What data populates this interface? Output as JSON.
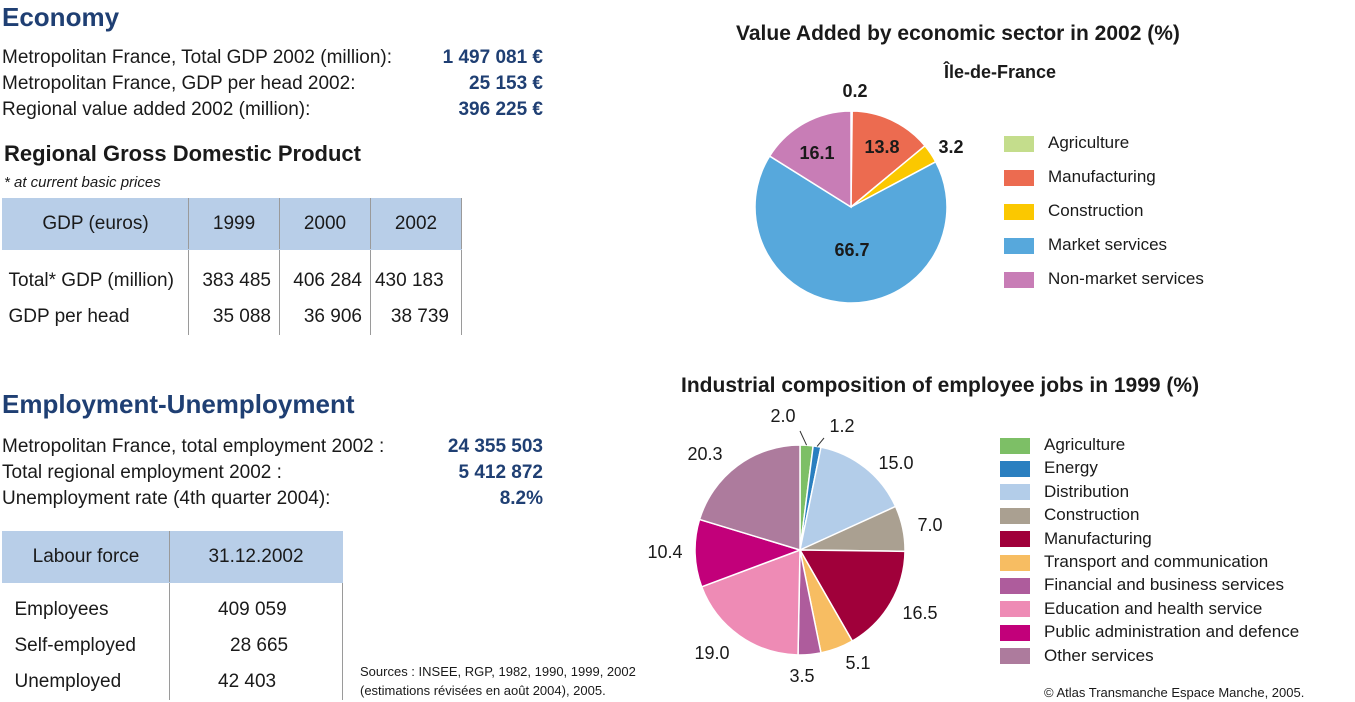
{
  "economy": {
    "title": "Economy",
    "rows": [
      {
        "label": "Metropolitan France, Total GDP 2002 (million):",
        "value": "1 497 081 €"
      },
      {
        "label": "Metropolitan France, GDP per head 2002:",
        "value": "25 153 €"
      },
      {
        "label": "Regional value added 2002 (million):",
        "value": "396 225 €"
      }
    ]
  },
  "gdp": {
    "title": "Regional Gross Domestic Product",
    "note": "* at current basic prices",
    "headers": [
      "GDP (euros)",
      "1999",
      "2000",
      "2002"
    ],
    "rows": [
      {
        "label": "Total* GDP (million)",
        "values": [
          "383 485",
          "406 284",
          "430 183"
        ]
      },
      {
        "label": "GDP per head",
        "values": [
          "35 088",
          "36 906",
          "38 739"
        ]
      }
    ]
  },
  "employment": {
    "title": "Employment-Unemployment",
    "rows": [
      {
        "label": "Metropolitan France, total employment 2002 :",
        "value": "24 355 503"
      },
      {
        "label": "Total regional employment 2002 :",
        "value": "5 412 872"
      },
      {
        "label": "Unemployment rate (4th quarter 2004):",
        "value": "8.2%"
      }
    ]
  },
  "labour": {
    "headers": [
      "Labour force",
      "31.12.2002"
    ],
    "rows": [
      {
        "label": "Employees",
        "value": "409 059"
      },
      {
        "label": "Self-employed",
        "value": "28 665"
      },
      {
        "label": "Unemployed",
        "value": "42 403"
      }
    ]
  },
  "sources": {
    "line1": "Sources : INSEE, RGP, 1982, 1990, 1999, 2002",
    "line2": "(estimations révisées en août 2004), 2005."
  },
  "copyright": "© Atlas Transmanche Espace Manche, 2005.",
  "chart_data": [
    {
      "type": "pie",
      "title": "Value Added by economic sector in 2002 (%)",
      "subtitle": "Île-de-France",
      "categories": [
        "Agriculture",
        "Manufacturing",
        "Construction",
        "Market services",
        "Non-market services"
      ],
      "values": [
        0.2,
        13.8,
        3.2,
        66.7,
        16.1
      ],
      "colors": [
        "#c4dd8c",
        "#ec6b50",
        "#fbc800",
        "#57a8dc",
        "#c87db6"
      ],
      "legend": "right"
    },
    {
      "type": "pie",
      "title": "Industrial composition of employee jobs in 1999 (%)",
      "categories": [
        "Agriculture",
        "Energy",
        "Distribution",
        "Construction",
        "Manufacturing",
        "Transport and communication",
        "Financial and business services",
        "Education and health service",
        "Public administration and defence",
        "Other services"
      ],
      "values": [
        2.0,
        1.2,
        15.0,
        7.0,
        16.5,
        5.1,
        3.5,
        19.0,
        10.4,
        20.3
      ],
      "colors": [
        "#7dbf66",
        "#2a7fc0",
        "#b3cde9",
        "#aaa091",
        "#a0003a",
        "#f7bd62",
        "#ae5c9c",
        "#ee8bb5",
        "#c2007a",
        "#ad7b9d"
      ],
      "legend": "right"
    }
  ]
}
